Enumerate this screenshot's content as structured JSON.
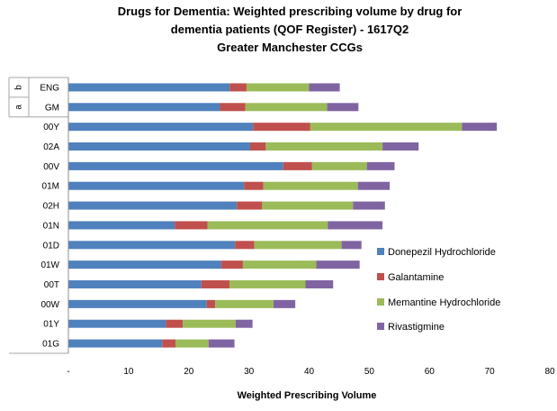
{
  "chart_data": {
    "type": "bar",
    "orientation": "horizontal",
    "stacked": true,
    "title": [
      "Drugs for Dementia: Weighted prescribing volume by drug for",
      "dementia patients (QOF Register) -  1617Q2",
      "Greater Manchester CCGs"
    ],
    "xlabel": "Weighted Prescribing Volume",
    "ylabel": "",
    "xlim": [
      0,
      80
    ],
    "xticks": [
      "-",
      "10",
      "20",
      "30",
      "40",
      "50",
      "60",
      "70",
      "80"
    ],
    "grid": false,
    "legend_position": "right",
    "categories": [
      "ENG",
      "GM",
      "00Y",
      "02A",
      "00V",
      "01M",
      "02H",
      "01N",
      "01D",
      "01W",
      "00T",
      "00W",
      "01Y",
      "01G"
    ],
    "group_labels": [
      {
        "label": "b",
        "category": "ENG"
      },
      {
        "label": "a",
        "category": "GM"
      }
    ],
    "series": [
      {
        "name": "Donepezil Hydrochloride",
        "color": "#4F81BD",
        "values": [
          26.8,
          25.2,
          30.7,
          30.2,
          35.7,
          29.2,
          28.0,
          17.7,
          27.7,
          25.4,
          22.1,
          23.0,
          16.2,
          15.6
        ]
      },
      {
        "name": "Galantamine",
        "color": "#C0504D",
        "values": [
          2.8,
          4.2,
          9.5,
          2.6,
          4.8,
          3.2,
          4.2,
          5.4,
          3.2,
          3.6,
          4.7,
          1.4,
          2.8,
          2.2
        ]
      },
      {
        "name": "Memantine Hydrochloride",
        "color": "#9BBB59",
        "values": [
          10.4,
          13.6,
          25.2,
          19.4,
          9.1,
          15.7,
          15.1,
          20.0,
          14.5,
          12.2,
          12.6,
          9.7,
          8.8,
          5.5
        ]
      },
      {
        "name": "Rivastigmine",
        "color": "#8064A2",
        "values": [
          5.1,
          5.2,
          5.8,
          6.0,
          4.6,
          5.3,
          5.3,
          9.1,
          3.3,
          7.2,
          4.6,
          3.6,
          2.8,
          4.3
        ]
      }
    ]
  }
}
